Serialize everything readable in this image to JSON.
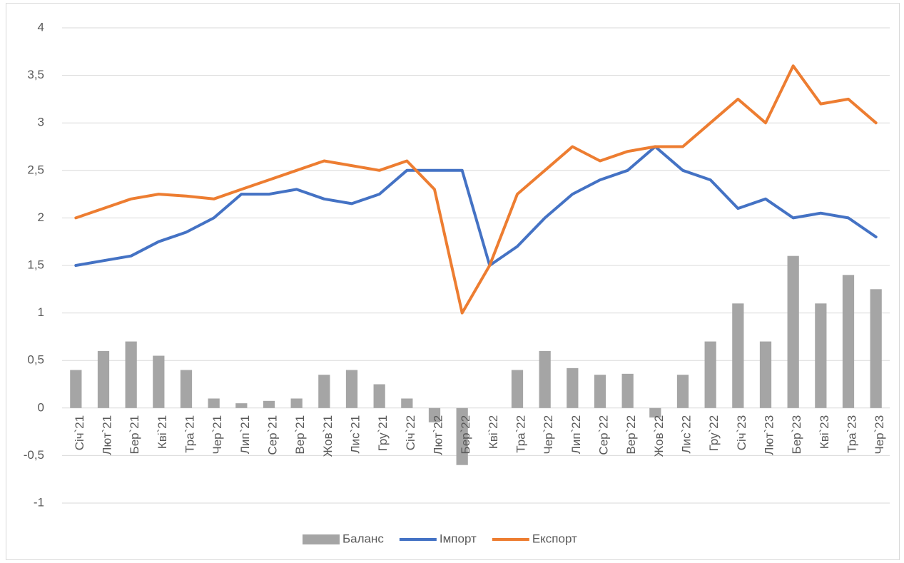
{
  "chart_data": {
    "type": "bar-line",
    "categories": [
      "Січ`21",
      "Лют`21",
      "Бер`21",
      "Кві`21",
      "Тра`21",
      "Чер`21",
      "Лип`21",
      "Сер`21",
      "Вер`21",
      "Жов`21",
      "Лис`21",
      "Гру`21",
      "Січ`22",
      "Лют`22",
      "Бер`22",
      "Кві`22",
      "Тра`22",
      "Чер`22",
      "Лип`22",
      "Сер`22",
      "Вер`22",
      "Жов`22",
      "Лис`22",
      "Гру`22",
      "Січ`23",
      "Лют`23",
      "Бер`23",
      "Кві`23",
      "Тра`23",
      "Чер`23"
    ],
    "series": [
      {
        "name": "Баланс",
        "type": "bar",
        "color": "#a5a5a5",
        "values": [
          0.4,
          0.6,
          0.7,
          0.55,
          0.4,
          0.1,
          0.05,
          0.075,
          0.1,
          0.35,
          0.4,
          0.25,
          0.1,
          -0.15,
          -0.6,
          0,
          0.4,
          0.6,
          0.42,
          0.35,
          0.36,
          -0.1,
          0.35,
          0.7,
          1.1,
          0.7,
          1.6,
          1.1,
          1.4,
          1.25
        ]
      },
      {
        "name": "Імпорт",
        "type": "line",
        "color": "#4472c4",
        "values": [
          1.5,
          1.55,
          1.6,
          1.75,
          1.85,
          2.0,
          2.25,
          2.25,
          2.3,
          2.2,
          2.15,
          2.25,
          2.5,
          2.5,
          2.5,
          1.5,
          1.7,
          2.0,
          2.25,
          2.4,
          2.5,
          2.75,
          2.5,
          2.4,
          2.1,
          2.2,
          2.0,
          2.05,
          2.0,
          1.8
        ]
      },
      {
        "name": "Експорт",
        "type": "line",
        "color": "#ed7d31",
        "values": [
          2.0,
          2.1,
          2.2,
          2.25,
          2.23,
          2.2,
          2.3,
          2.4,
          2.5,
          2.6,
          2.55,
          2.5,
          2.6,
          2.3,
          1.0,
          1.5,
          2.25,
          2.5,
          2.75,
          2.6,
          2.7,
          2.75,
          2.75,
          3.0,
          3.25,
          3.0,
          3.6,
          3.2,
          3.25,
          3.0
        ]
      }
    ],
    "ylim": [
      -1,
      4
    ],
    "yticks": [
      -1,
      {
        "value": -0.5,
        "label": "-0,5"
      },
      0,
      {
        "value": 0.5,
        "label": "0,5"
      },
      1,
      {
        "value": 1.5,
        "label": "1,5"
      },
      2,
      {
        "value": 2.5,
        "label": "2,5"
      },
      3,
      {
        "value": 3.5,
        "label": "3,5"
      },
      4
    ],
    "grid": true,
    "legend": "bottom"
  }
}
